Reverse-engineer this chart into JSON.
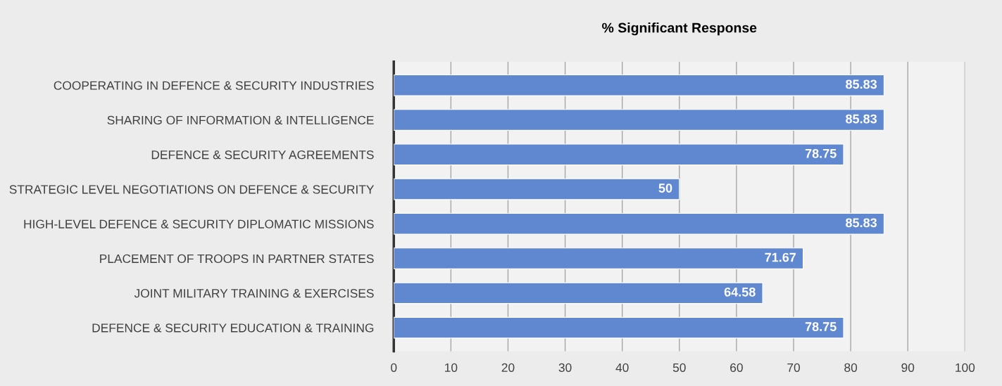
{
  "chart_data": {
    "type": "bar",
    "orientation": "horizontal",
    "title": "% Significant Response",
    "categories": [
      "COOPERATING IN DEFENCE & SECURITY INDUSTRIES",
      "SHARING OF INFORMATION & INTELLIGENCE",
      "DEFENCE & SECURITY AGREEMENTS",
      "STRATEGIC LEVEL NEGOTIATIONS ON DEFENCE & SECURITY",
      "HIGH-LEVEL DEFENCE & SECURITY DIPLOMATIC MISSIONS",
      "PLACEMENT OF TROOPS IN PARTNER STATES",
      "JOINT MILITARY TRAINING & EXERCISES",
      "DEFENCE & SECURITY EDUCATION & TRAINING"
    ],
    "values": [
      85.83,
      85.83,
      78.75,
      50,
      85.83,
      71.67,
      64.58,
      78.75
    ],
    "color": "#6088d0",
    "xlim": [
      0,
      100
    ],
    "xticks": [
      0,
      10,
      20,
      30,
      40,
      50,
      60,
      70,
      80,
      90,
      100
    ],
    "grid": "x",
    "data_labels": true
  }
}
